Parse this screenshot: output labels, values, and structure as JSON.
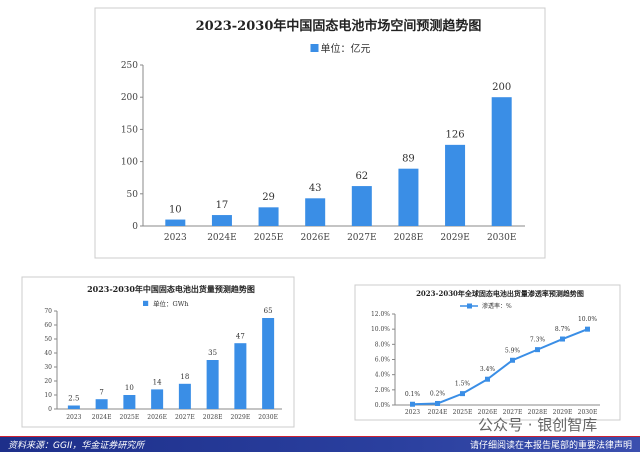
{
  "chart_data": [
    {
      "type": "bar",
      "title": "2023-2030年中国固态电池市场空间预测趋势图",
      "legend": "单位：亿元",
      "categories": [
        "2023",
        "2024E",
        "2025E",
        "2026E",
        "2027E",
        "2028E",
        "2029E",
        "2030E"
      ],
      "values": [
        10,
        17,
        29,
        43,
        62,
        89,
        126,
        200
      ],
      "ylim": [
        0,
        250
      ],
      "yticks": [
        0,
        50,
        100,
        150,
        200,
        250
      ],
      "color": "#3a8ee6"
    },
    {
      "type": "bar",
      "title": "2023-2030年中国固态电池出货量预测趋势图",
      "legend": "单位：GWh",
      "categories": [
        "2023",
        "2024E",
        "2025E",
        "2026E",
        "2027E",
        "2028E",
        "2029E",
        "2030E"
      ],
      "values": [
        2.5,
        7,
        10,
        14,
        18,
        35,
        47,
        65
      ],
      "labels": [
        "2.5",
        "7",
        "10",
        "14",
        "18",
        "35",
        "47",
        "65"
      ],
      "ylim": [
        0,
        70
      ],
      "yticks": [
        0,
        10,
        20,
        30,
        40,
        50,
        60,
        70
      ],
      "color": "#3a8ee6"
    },
    {
      "type": "line",
      "title": "2023-2030年全球固态电池出货量渗透率预测趋势图",
      "legend": "渗透率：%",
      "categories": [
        "2023",
        "2024E",
        "2025E",
        "2026E",
        "2027E",
        "2028E",
        "2029E",
        "2030E"
      ],
      "values": [
        0.1,
        0.2,
        1.5,
        3.4,
        5.9,
        7.3,
        8.7,
        10.0
      ],
      "labels": [
        "0.1%",
        "0.2%",
        "1.5%",
        "3.4%",
        "5.9%",
        "7.3%",
        "8.7%",
        "10.0%"
      ],
      "ylim": [
        0,
        12
      ],
      "yticks": [
        "0.0%",
        "2.0%",
        "4.0%",
        "6.0%",
        "8.0%",
        "10.0%",
        "12.0%"
      ],
      "color": "#3a8ee6"
    }
  ],
  "footer": {
    "source": "资料来源：GGII，华金证券研究所",
    "disclaimer": "请仔细阅读在本报告尾部的重要法律声明"
  },
  "watermark": "公众号 · 银创智库"
}
